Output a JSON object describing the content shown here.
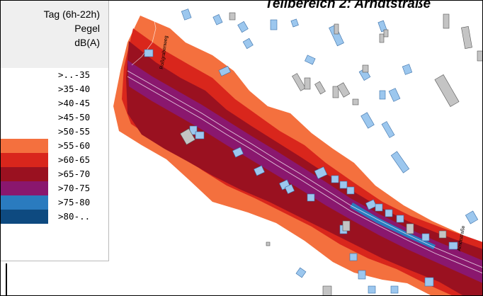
{
  "title": "Teilbereich 2: Arndtstraße",
  "legend": {
    "header": [
      "Tag (6h-22h)",
      "Pegel",
      "dB(A)"
    ],
    "classes": [
      {
        "label": ">..-35",
        "color": "#ffffff"
      },
      {
        "label": ">35-40",
        "color": "#ffffff"
      },
      {
        "label": ">40-45",
        "color": "#ffffff"
      },
      {
        "label": ">45-50",
        "color": "#ffffff"
      },
      {
        "label": ">50-55",
        "color": "#ffffff"
      },
      {
        "label": ">55-60",
        "color": "#f4703e"
      },
      {
        "label": ">60-65",
        "color": "#d9261c"
      },
      {
        "label": ">65-70",
        "color": "#9a1120"
      },
      {
        "label": ">70-75",
        "color": "#8a176e"
      },
      {
        "label": ">75-80",
        "color": "#2a7bbf"
      },
      {
        "label": ">80-..",
        "color": "#0e4a80"
      }
    ]
  },
  "street_labels": [
    "Roßgrabenweg",
    "Arndtstraße"
  ],
  "colors": {
    "building_residential": "#9cc7ee",
    "building_other": "#c4c4c4",
    "road_outline": "#ffffff"
  }
}
